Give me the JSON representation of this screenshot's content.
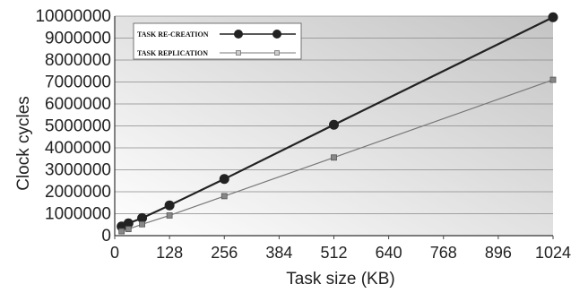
{
  "chart_data": {
    "type": "line",
    "title": "",
    "xlabel": "Task size (KB)",
    "ylabel": "Clock cycles",
    "xlim": [
      0,
      1024
    ],
    "ylim": [
      0,
      10000000
    ],
    "x_ticks": [
      "0",
      "128",
      "256",
      "384",
      "512",
      "640",
      "768",
      "896",
      "1024"
    ],
    "y_ticks": [
      "0",
      "1000000",
      "2000000",
      "3000000",
      "4000000",
      "5000000",
      "6000000",
      "7000000",
      "8000000",
      "9000000",
      "10000000"
    ],
    "grid": true,
    "legend_position": "top-left",
    "series": [
      {
        "name": "TASK RE-CREATION",
        "color": "#222222",
        "marker": "circle",
        "x": [
          16,
          32,
          64,
          128,
          256,
          512,
          1024
        ],
        "y": [
          420000,
          560000,
          800000,
          1380000,
          2580000,
          5050000,
          9950000
        ]
      },
      {
        "name": "TASK REPLICATION",
        "color": "#777777",
        "marker": "square",
        "x": [
          16,
          32,
          64,
          128,
          256,
          512,
          1024
        ],
        "y": [
          200000,
          300000,
          520000,
          920000,
          1800000,
          3560000,
          7100000
        ]
      }
    ]
  }
}
